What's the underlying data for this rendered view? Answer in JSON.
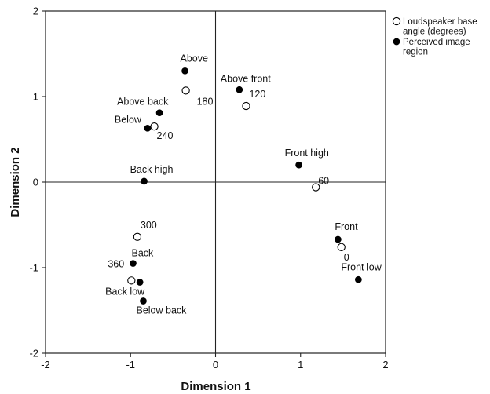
{
  "chart_data": {
    "type": "scatter",
    "xlabel": "Dimension 1",
    "ylabel": "Dimension 2",
    "xlim": [
      -2,
      2
    ],
    "ylim": [
      -2,
      2
    ],
    "xticks": [
      "-2",
      "-1",
      "0",
      "1",
      "2"
    ],
    "yticks": [
      "2",
      "1",
      "0",
      "-1",
      "-2"
    ],
    "reference_lines": {
      "x": 0,
      "y": 0
    },
    "grid": false,
    "legend_position": "top-right, outside plot",
    "series": [
      {
        "name": "Loudspeaker base angle (degrees)",
        "legend_lines": [
          "Loudspeaker base",
          "angle (degrees)"
        ],
        "marker": "open-circle",
        "points": [
          {
            "label": "0",
            "x": 1.48,
            "y": -0.76
          },
          {
            "label": "60",
            "x": 1.18,
            "y": -0.06
          },
          {
            "label": "120",
            "x": 0.36,
            "y": 0.89
          },
          {
            "label": "180",
            "x": -0.35,
            "y": 1.07
          },
          {
            "label": "240",
            "x": -0.72,
            "y": 0.65
          },
          {
            "label": "300",
            "x": -0.92,
            "y": -0.64
          },
          {
            "label": "360",
            "x": -0.99,
            "y": -1.15
          }
        ]
      },
      {
        "name": "Perceived image region",
        "legend_lines": [
          "Perceived image",
          "region"
        ],
        "marker": "filled-circle",
        "points": [
          {
            "label": "Front",
            "x": 1.44,
            "y": -0.67
          },
          {
            "label": "Front low",
            "x": 1.68,
            "y": -1.14
          },
          {
            "label": "Front high",
            "x": 0.98,
            "y": 0.2
          },
          {
            "label": "Above front",
            "x": 0.28,
            "y": 1.08
          },
          {
            "label": "Above",
            "x": -0.36,
            "y": 1.3
          },
          {
            "label": "Above back",
            "x": -0.66,
            "y": 0.81
          },
          {
            "label": "Below",
            "x": -0.8,
            "y": 0.63
          },
          {
            "label": "Back high",
            "x": -0.84,
            "y": 0.01
          },
          {
            "label": "Back",
            "x": -0.97,
            "y": -0.95
          },
          {
            "label": "Back low",
            "x": -0.89,
            "y": -1.17
          },
          {
            "label": "Below back",
            "x": -0.85,
            "y": -1.39
          }
        ]
      }
    ]
  }
}
